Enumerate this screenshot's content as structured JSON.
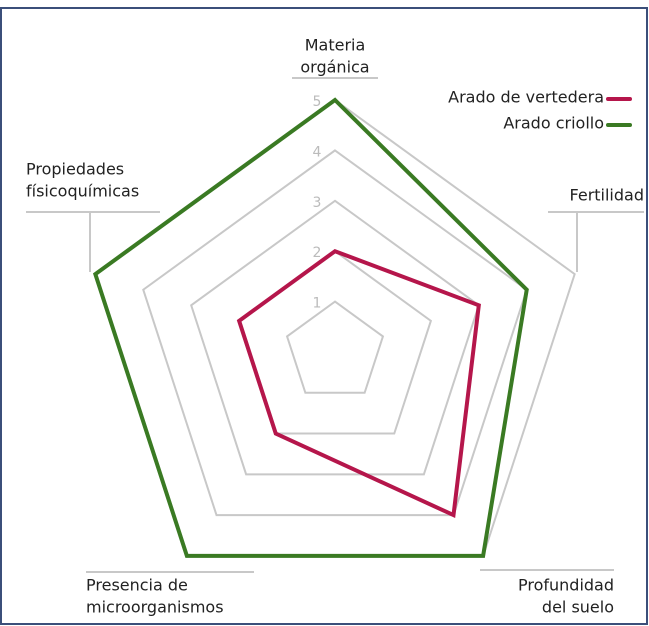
{
  "chart_data": {
    "type": "radar",
    "categories": [
      [
        "Materia",
        "orgánica"
      ],
      [
        "Fertilidad"
      ],
      [
        "Profundidad",
        "del suelo"
      ],
      [
        "Presencia de",
        "microorganismos"
      ],
      [
        "Propiedades",
        "físicoquímicas"
      ]
    ],
    "series": [
      {
        "name": "Arado de vertedera",
        "color": "#b5164b",
        "values": [
          2,
          3,
          4,
          2,
          2
        ]
      },
      {
        "name": "Arado criollo",
        "color": "#3a7a23",
        "values": [
          5,
          4,
          5,
          5,
          5
        ]
      }
    ],
    "ylim": [
      0,
      5
    ],
    "yticks": [
      1,
      2,
      3,
      4,
      5
    ],
    "grid": true
  }
}
